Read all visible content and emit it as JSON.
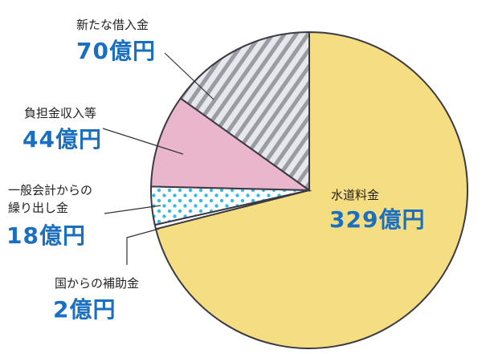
{
  "chart_data": {
    "type": "pie",
    "categories": [
      "水道料金",
      "国からの補助金",
      "一般会計からの\n繰り出し金",
      "負担金収入等",
      "新たな借入金"
    ],
    "values": [
      329,
      2,
      18,
      44,
      70
    ],
    "value_labels": [
      "329億円",
      "2億円",
      "18億円",
      "44億円",
      "70億円"
    ],
    "colors": [
      "#f5dd82",
      "#ffffff",
      "#ffffff",
      "#e9b6cb",
      "#e6e8ee"
    ],
    "patterns": [
      null,
      null,
      "dots",
      null,
      "stripes"
    ]
  }
}
